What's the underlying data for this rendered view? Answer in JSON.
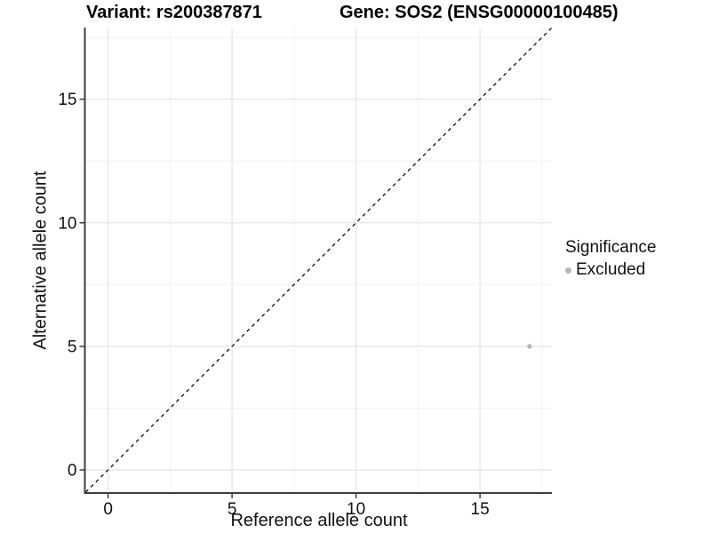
{
  "figure": {
    "background": "#ffffff"
  },
  "chart_data": {
    "type": "scatter",
    "title_left": "Variant: rs200387871",
    "title_right": "Gene: SOS2 (ENSG00000100485)",
    "xlabel": "Reference allele count",
    "ylabel": "Alternative allele count",
    "xlim": [
      -0.9,
      17.9
    ],
    "ylim": [
      -0.9,
      17.9
    ],
    "x_ticks": [
      0,
      5,
      10,
      15
    ],
    "y_ticks": [
      0,
      5,
      10,
      15
    ],
    "grid": {
      "major": [
        0,
        5,
        10,
        15
      ],
      "minor": [
        2.5,
        7.5,
        12.5,
        17.5
      ]
    },
    "points": [
      {
        "x": 17,
        "y": 5,
        "significance": "Excluded"
      }
    ],
    "reference_line": {
      "kind": "identity",
      "slope": 1,
      "intercept": 0,
      "style": "dashed"
    },
    "legend": {
      "title": "Significance",
      "position": "right",
      "entries": [
        {
          "label": "Excluded",
          "color": "#b5b5b5"
        }
      ]
    },
    "colors": {
      "point": "#b5b5b5",
      "axis_line": "#3d3d3d",
      "grid_major": "#e4e4e4",
      "grid_minor": "#f0f0f0",
      "identity_line": "#1a1a1a",
      "text": "#111111"
    }
  }
}
